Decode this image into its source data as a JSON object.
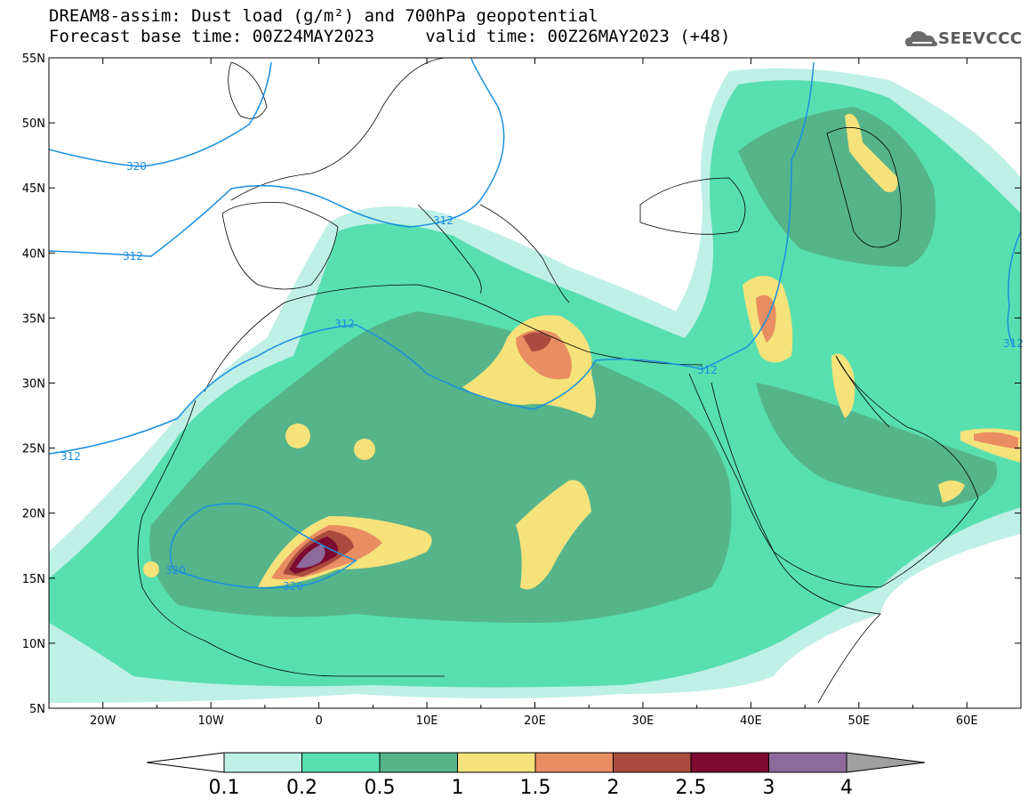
{
  "title_line1": "DREAM8-assim: Dust load (g/m²) and 700hPa geopotential",
  "title_line2": "Forecast base time: 00Z24MAY2023     valid time: 00Z26MAY2023 (+48)",
  "logo_text": "SEEVCCC",
  "map": {
    "lon_range": [
      -25,
      65
    ],
    "lat_range": [
      5,
      55
    ],
    "lat_ticks": [
      "5N",
      "10N",
      "15N",
      "20N",
      "25N",
      "30N",
      "35N",
      "40N",
      "45N",
      "50N",
      "55N"
    ],
    "lon_ticks": [
      "20W",
      "10W",
      "0",
      "10E",
      "20E",
      "30E",
      "40E",
      "50E",
      "60E"
    ],
    "contour_labels": [
      "320",
      "312",
      "312",
      "312",
      "312",
      "312",
      "320",
      "320",
      "312"
    ],
    "contour_color": "#1a8fe0",
    "coastline_color": "#000000"
  },
  "colorbar": {
    "levels": [
      "0.1",
      "0.2",
      "0.5",
      "1",
      "1.5",
      "2",
      "2.5",
      "3",
      "4"
    ],
    "colors": [
      "#bff0e6",
      "#58dfb0",
      "#56b48b",
      "#f5e27a",
      "#e98d63",
      "#a94c3d",
      "#7d0a31",
      "#8e6a9c"
    ],
    "under_color": "#ffffff",
    "over_color": "#a0a0a0"
  }
}
